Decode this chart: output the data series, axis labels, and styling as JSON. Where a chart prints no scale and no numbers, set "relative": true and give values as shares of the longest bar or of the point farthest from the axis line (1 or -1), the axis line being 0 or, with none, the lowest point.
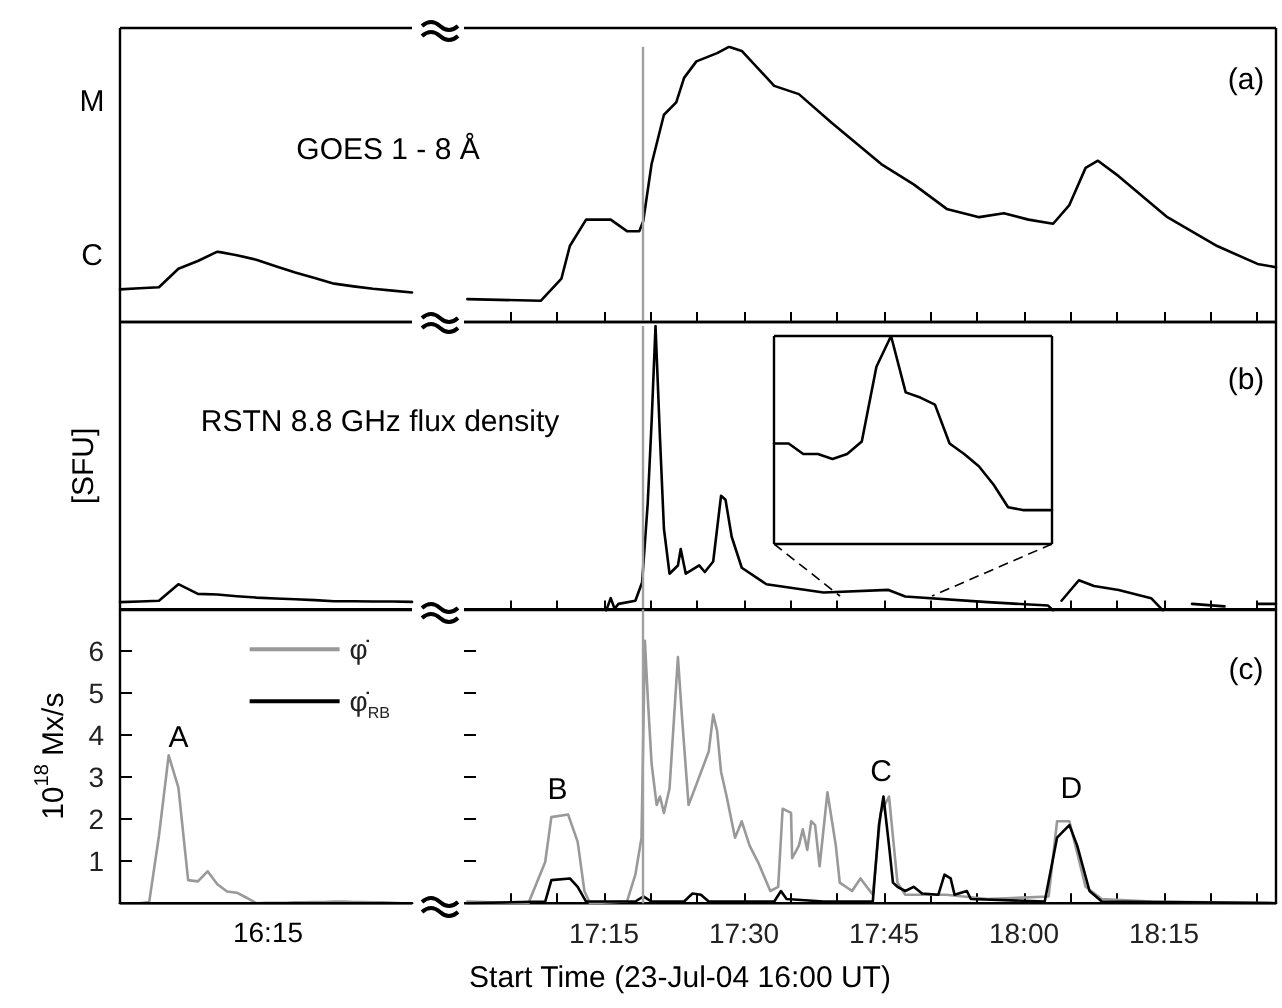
{
  "chart_data": [
    {
      "type": "line",
      "annotations": [
        "GOES 1 - 8 Å",
        "C",
        "M"
      ],
      "relative": true,
      "categories": [
        null,
        null,
        null,
        null,
        null,
        null,
        null,
        null,
        null,
        null,
        null,
        null,
        null,
        null,
        null,
        null
      ],
      "tick_labels": false,
      "grid": false,
      "marker": "none",
      "series": [
        {
          "color": "#000000",
          "values": [
            0.463,
            0.48,
            0.494,
            0.756,
            0.866,
            1,
            0.949,
            0.884,
            0.793,
            0.702,
            0.625,
            0.545,
            0.506,
            0.472,
            0.446,
            0.42
          ]
        }
      ]
    },
    {
      "type": "line",
      "annotations": [
        "(a)"
      ],
      "relative": true,
      "xlim": [
        17,
        18.45
      ],
      "xticks": [
        {
          "value": 17.0833,
          "label": null
        },
        {
          "value": 17.1667,
          "label": null
        },
        {
          "value": 17.25,
          "label": null
        },
        {
          "value": 17.3333,
          "label": null
        },
        {
          "value": 17.4167,
          "label": null
        },
        {
          "value": 17.5,
          "label": null
        },
        {
          "value": 17.5833,
          "label": null
        },
        {
          "value": 17.6667,
          "label": null
        },
        {
          "value": 17.75,
          "label": null
        },
        {
          "value": 17.8333,
          "label": null
        },
        {
          "value": 17.9167,
          "label": null
        },
        {
          "value": 18,
          "label": null
        },
        {
          "value": 18.0833,
          "label": null
        },
        {
          "value": 18.1667,
          "label": null
        },
        {
          "value": 18.25,
          "label": null
        },
        {
          "value": 18.3333,
          "label": null
        },
        {
          "value": 18.4167,
          "label": null
        }
      ],
      "tick_labels": false,
      "grid": false,
      "marker": "none",
      "ref_lines": [
        {
          "axis": "x",
          "value": 17.32,
          "color": "#a0a0a0"
        }
      ],
      "series": [
        {
          "color": "#000000",
          "x": [
            17.006,
            17.137,
            17.174,
            17.189,
            17.218,
            17.262,
            17.291,
            17.313,
            17.32,
            17.335,
            17.357,
            17.379,
            17.393,
            17.415,
            17.452,
            17.473,
            17.496,
            17.554,
            17.598,
            17.657,
            17.745,
            17.803,
            17.862,
            17.92,
            17.964,
            18.008,
            18.052,
            18.081,
            18.11,
            18.132,
            18.169,
            18.256,
            18.345,
            18.417,
            18.45
          ],
          "values": [
            0.083,
            0.077,
            0.158,
            0.276,
            0.372,
            0.372,
            0.33,
            0.33,
            0.366,
            0.574,
            0.753,
            0.798,
            0.887,
            0.947,
            0.977,
            1,
            0.985,
            0.858,
            0.828,
            0.723,
            0.574,
            0.5,
            0.411,
            0.381,
            0.395,
            0.372,
            0.357,
            0.425,
            0.56,
            0.586,
            0.53,
            0.381,
            0.276,
            0.211,
            0.199
          ]
        }
      ]
    },
    {
      "type": "line",
      "ylabel": "[SFU]",
      "annotations": [
        "RSTN 8.8 GHz flux density"
      ],
      "relative": true,
      "categories": [
        null,
        null,
        null,
        null,
        null,
        null,
        null,
        null,
        null,
        null,
        null,
        null,
        null,
        null,
        null,
        null
      ],
      "tick_labels": false,
      "grid": false,
      "marker": "none",
      "series": [
        {
          "color": "#000000",
          "values": [
            0.315,
            0.337,
            0.37,
            1,
            0.63,
            0.609,
            0.543,
            0.489,
            0.457,
            0.424,
            0.391,
            0.348,
            0.348,
            0.337,
            0.337,
            0.326
          ]
        }
      ]
    },
    {
      "type": "line",
      "annotations": [
        "(b)"
      ],
      "relative": true,
      "xlim": [
        17,
        18.45
      ],
      "xticks": [
        {
          "value": 17.0833,
          "label": null
        },
        {
          "value": 17.1667,
          "label": null
        },
        {
          "value": 17.25,
          "label": null
        },
        {
          "value": 17.3333,
          "label": null
        },
        {
          "value": 17.4167,
          "label": null
        },
        {
          "value": 17.5,
          "label": null
        },
        {
          "value": 17.5833,
          "label": null
        },
        {
          "value": 17.6667,
          "label": null
        },
        {
          "value": 17.75,
          "label": null
        },
        {
          "value": 17.8333,
          "label": null
        },
        {
          "value": 17.9167,
          "label": null
        },
        {
          "value": 18,
          "label": null
        },
        {
          "value": 18.0833,
          "label": null
        },
        {
          "value": 18.1667,
          "label": null
        },
        {
          "value": 18.25,
          "label": null
        },
        {
          "value": 18.3333,
          "label": null
        },
        {
          "value": 18.4167,
          "label": null
        }
      ],
      "tick_labels": false,
      "grid": false,
      "marker": "none",
      "ref_lines": [
        {
          "axis": "x",
          "value": 17.32,
          "color": "#a0a0a0"
        }
      ],
      "series": [
        {
          "color": "#000000",
          "x": [
            17.254,
            17.262,
            17.269,
            17.276,
            17.306,
            17.318,
            17.328,
            17.335,
            17.342,
            17.35,
            17.357,
            17.367,
            17.382,
            17.387,
            17.396,
            17.42,
            17.43,
            17.445,
            17.459,
            17.467,
            17.478,
            17.496,
            17.54,
            17.642,
            17.758,
            17.788,
            17.935,
            18.043,
            18.052,
            18.06,
            18.067,
            18.098,
            18.125,
            18.169,
            18.227,
            18.248,
            18.27,
            18.3,
            18.358,
            18.39,
            18.417,
            18.45
          ],
          "values": [
            0,
            0.043,
            0.006,
            0.023,
            0.034,
            0.098,
            0.374,
            0.662,
            1,
            0.605,
            0.288,
            0.129,
            0.158,
            0.216,
            0.129,
            0.158,
            0.135,
            0.172,
            0.403,
            0.389,
            0.259,
            0.15,
            0.092,
            0.063,
            0.072,
            0.049,
            0.029,
            0.017,
            0,
            null,
            0.034,
            0.106,
            0.086,
            0.072,
            0.043,
            0,
            null,
            0.023,
            0.014,
            null,
            0.023,
            0.023
          ]
        }
      ]
    },
    {
      "type": "line",
      "relative": true,
      "categories": [
        null,
        null,
        null,
        null,
        null,
        null,
        null,
        null,
        null,
        null,
        null,
        null,
        null,
        null,
        null,
        null,
        null,
        null,
        null,
        null
      ],
      "tick_labels": false,
      "marker": "none",
      "series": [
        {
          "color": "#000000",
          "values": [
            0.483,
            0.483,
            0.433,
            0.433,
            0.409,
            0.433,
            0.493,
            0.852,
            1,
            0.729,
            0.704,
            0.67,
            0.483,
            0.433,
            0.374,
            0.286,
            0.177,
            0.163,
            0.163,
            0.163
          ]
        }
      ]
    },
    {
      "type": "line",
      "ylabel": "10$^{18}$ Mx/s",
      "categories": [
        null,
        null,
        null,
        null,
        null,
        null,
        null,
        null,
        null,
        null,
        null,
        null,
        null,
        null,
        null,
        null,
        null,
        null,
        null,
        null,
        null,
        null,
        null,
        null,
        null,
        null,
        null,
        null,
        null,
        null,
        null
      ],
      "ylim": [
        0,
        7
      ],
      "yticks": [
        1,
        2,
        3,
        4,
        5,
        6
      ],
      "tick_labels": "y",
      "grid": false,
      "marker": "none",
      "legend": "top right",
      "annotations": [
        "A",
        "16:15"
      ],
      "series": [
        {
          "name": "φ̇",
          "color": "#999999",
          "values": [
            0,
            0,
            0,
            0.03,
            1.6,
            3.52,
            2.75,
            0.55,
            0.52,
            0.76,
            0.45,
            0.28,
            0.25,
            0.13,
            0,
            0.01,
            0.01,
            0.01,
            0.02,
            0.02,
            0.03,
            0.03,
            0.04,
            0.04,
            0.03,
            0.03,
            0.02,
            0.02,
            0.01,
            0,
            0
          ]
        },
        {
          "name": "φ̇$_{RB}$",
          "color": "#000000",
          "values": [
            0,
            0,
            0,
            0,
            0,
            0,
            0,
            0,
            0,
            0,
            0,
            0,
            0,
            0,
            0,
            0,
            0,
            0,
            0,
            0,
            0,
            0,
            0,
            0,
            0,
            0,
            0,
            0,
            0,
            0,
            0
          ]
        }
      ]
    },
    {
      "type": "line",
      "xlabel": "Start Time (23-Jul-04 16:00 UT)",
      "xlim": [
        17,
        18.45
      ],
      "xticks": [
        {
          "value": 17.0833,
          "label": null
        },
        {
          "value": 17.1667,
          "label": null
        },
        {
          "value": 17.25,
          "label": "17:15"
        },
        {
          "value": 17.3333,
          "label": null
        },
        {
          "value": 17.4167,
          "label": null
        },
        {
          "value": 17.5,
          "label": "17:30"
        },
        {
          "value": 17.5833,
          "label": null
        },
        {
          "value": 17.6667,
          "label": null
        },
        {
          "value": 17.75,
          "label": "17:45"
        },
        {
          "value": 17.8333,
          "label": null
        },
        {
          "value": 17.9167,
          "label": null
        },
        {
          "value": 18,
          "label": "18:00"
        },
        {
          "value": 18.0833,
          "label": null
        },
        {
          "value": 18.1667,
          "label": null
        },
        {
          "value": 18.25,
          "label": "18:15"
        },
        {
          "value": 18.3333,
          "label": null
        },
        {
          "value": 18.4167,
          "label": null
        }
      ],
      "ylim": [
        0,
        7
      ],
      "yticks": [
        1,
        2,
        3,
        4,
        5,
        6
      ],
      "tick_labels": "x",
      "grid": false,
      "marker": "none",
      "ref_lines": [
        {
          "axis": "x",
          "value": 17.32,
          "color": "#a0a0a0"
        }
      ],
      "annotations": [
        "(c)",
        "B",
        "C",
        "D"
      ],
      "series": [
        {
          "color": "#999999",
          "x": [
            17.006,
            17.115,
            17.145,
            17.156,
            17.186,
            17.203,
            17.215,
            17.225,
            17.291,
            17.306,
            17.317,
            17.323,
            17.329,
            17.335,
            17.344,
            17.35,
            17.357,
            17.367,
            17.382,
            17.39,
            17.401,
            17.415,
            17.437,
            17.445,
            17.452,
            17.459,
            17.469,
            17.484,
            17.496,
            17.51,
            17.525,
            17.547,
            17.561,
            17.569,
            17.584,
            17.586,
            17.598,
            17.605,
            17.613,
            17.62,
            17.627,
            17.635,
            17.649,
            17.664,
            17.671,
            17.693,
            17.708,
            17.73,
            17.744,
            17.759,
            17.774,
            17.788,
            17.861,
            17.935,
            18.044,
            18.059,
            18.081,
            18.11,
            18.139,
            18.227,
            18.45
          ],
          "values": [
            0.04,
            0,
            0.98,
            2.05,
            2.11,
            1.46,
            0.29,
            0,
            0.04,
            0.68,
            1.56,
            6.25,
            4.69,
            3.32,
            2.34,
            2.54,
            2.15,
            2.73,
            5.86,
            4.3,
            2.34,
            2.83,
            3.61,
            4.49,
            4.1,
            3.13,
            2.54,
            1.56,
            1.95,
            1.37,
            0.98,
            0.29,
            0.39,
            2.25,
            2.15,
            1.07,
            1.37,
            1.76,
            1.27,
            1.95,
            1.86,
            0.88,
            2.64,
            1.37,
            0.49,
            0.29,
            0.59,
            0.2,
            2.15,
            2.54,
            0.49,
            0.2,
            0.2,
            0.1,
            0.16,
            1.95,
            1.95,
            0.39,
            0.1,
            0.04,
            0
          ]
        },
        {
          "color": "#000000",
          "x": [
            17.006,
            17.145,
            17.156,
            17.189,
            17.203,
            17.218,
            17.306,
            17.32,
            17.335,
            17.393,
            17.408,
            17.423,
            17.437,
            17.554,
            17.566,
            17.576,
            17.642,
            17.73,
            17.741,
            17.749,
            17.759,
            17.766,
            17.774,
            17.788,
            17.803,
            17.818,
            17.847,
            17.858,
            17.869,
            17.876,
            17.898,
            17.905,
            18.037,
            18.059,
            18.081,
            18.095,
            18.117,
            18.139,
            18.45
          ],
          "values": [
            0,
            0.04,
            0.55,
            0.59,
            0.39,
            0.04,
            0.04,
            0.16,
            0.04,
            0.04,
            0.23,
            0.2,
            0.04,
            0.04,
            0.29,
            0.1,
            0.04,
            0.04,
            1.86,
            2.54,
            1.37,
            0.49,
            0.39,
            0.29,
            0.39,
            0.23,
            0.2,
            0.68,
            0.59,
            0.2,
            0.29,
            0.1,
            0.04,
            1.56,
            1.86,
            1.37,
            0.29,
            0.04,
            0
          ]
        }
      ]
    }
  ]
}
